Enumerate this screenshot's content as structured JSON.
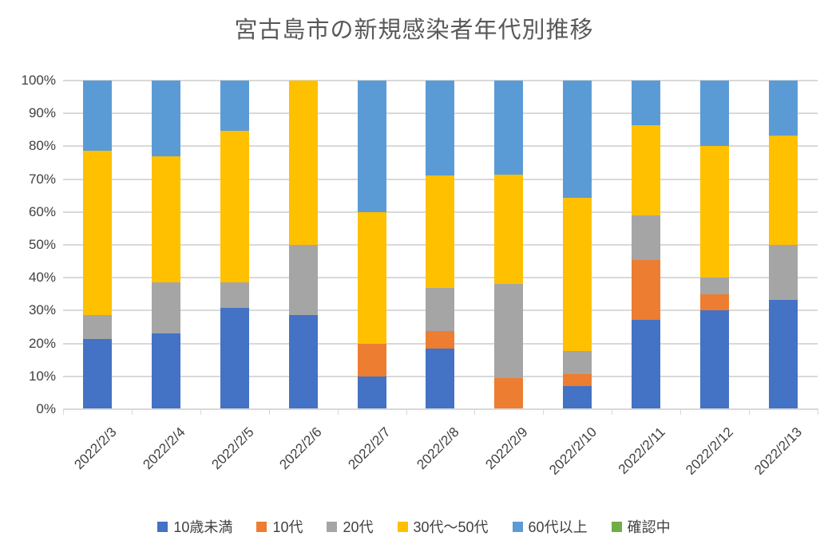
{
  "page_title": "宮古島市の新規感染者年代別推移",
  "chart_data": {
    "type": "bar",
    "subtype": "stacked-100-percent-column",
    "title": "宮古島市の新規感染者年代別推移",
    "xlabel": "",
    "ylabel": "",
    "ylim": [
      0,
      100
    ],
    "grid": true,
    "legend_position": "bottom",
    "yticks": [
      "0%",
      "10%",
      "20%",
      "30%",
      "40%",
      "50%",
      "60%",
      "70%",
      "80%",
      "90%",
      "100%"
    ],
    "categories": [
      "2022/2/3",
      "2022/2/4",
      "2022/2/5",
      "2022/2/6",
      "2022/2/7",
      "2022/2/8",
      "2022/2/9",
      "2022/2/10",
      "2022/2/11",
      "2022/2/12",
      "2022/2/13"
    ],
    "series": [
      {
        "name": "10歳未満",
        "color": "#4472C4",
        "values": [
          21.4,
          23.1,
          30.8,
          28.6,
          10.0,
          18.4,
          0.0,
          7.1,
          27.3,
          30.0,
          33.3
        ]
      },
      {
        "name": "10代",
        "color": "#ED7D31",
        "values": [
          0.0,
          0.0,
          0.0,
          0.0,
          10.0,
          5.3,
          9.5,
          3.6,
          18.2,
          5.0,
          0.0
        ]
      },
      {
        "name": "20代",
        "color": "#A5A5A5",
        "values": [
          7.2,
          15.4,
          7.7,
          21.4,
          0.0,
          13.2,
          28.6,
          7.1,
          13.6,
          5.0,
          16.7
        ]
      },
      {
        "name": "30代〜50代",
        "color": "#FFC000",
        "values": [
          50.0,
          38.4,
          46.1,
          50.0,
          40.0,
          34.2,
          33.3,
          46.5,
          27.3,
          40.0,
          33.3
        ]
      },
      {
        "name": "60代以上",
        "color": "#5B9BD5",
        "values": [
          21.4,
          23.1,
          15.4,
          0.0,
          40.0,
          28.9,
          28.6,
          35.7,
          13.6,
          20.0,
          16.7
        ]
      },
      {
        "name": "確認中",
        "color": "#70AD47",
        "values": [
          0.0,
          0.0,
          0.0,
          0.0,
          0.0,
          0.0,
          0.0,
          0.0,
          0.0,
          0.0,
          0.0
        ]
      }
    ],
    "gridline_color": "#D9D9D9",
    "axis_text_color": "#404040",
    "title_color": "#595959"
  }
}
